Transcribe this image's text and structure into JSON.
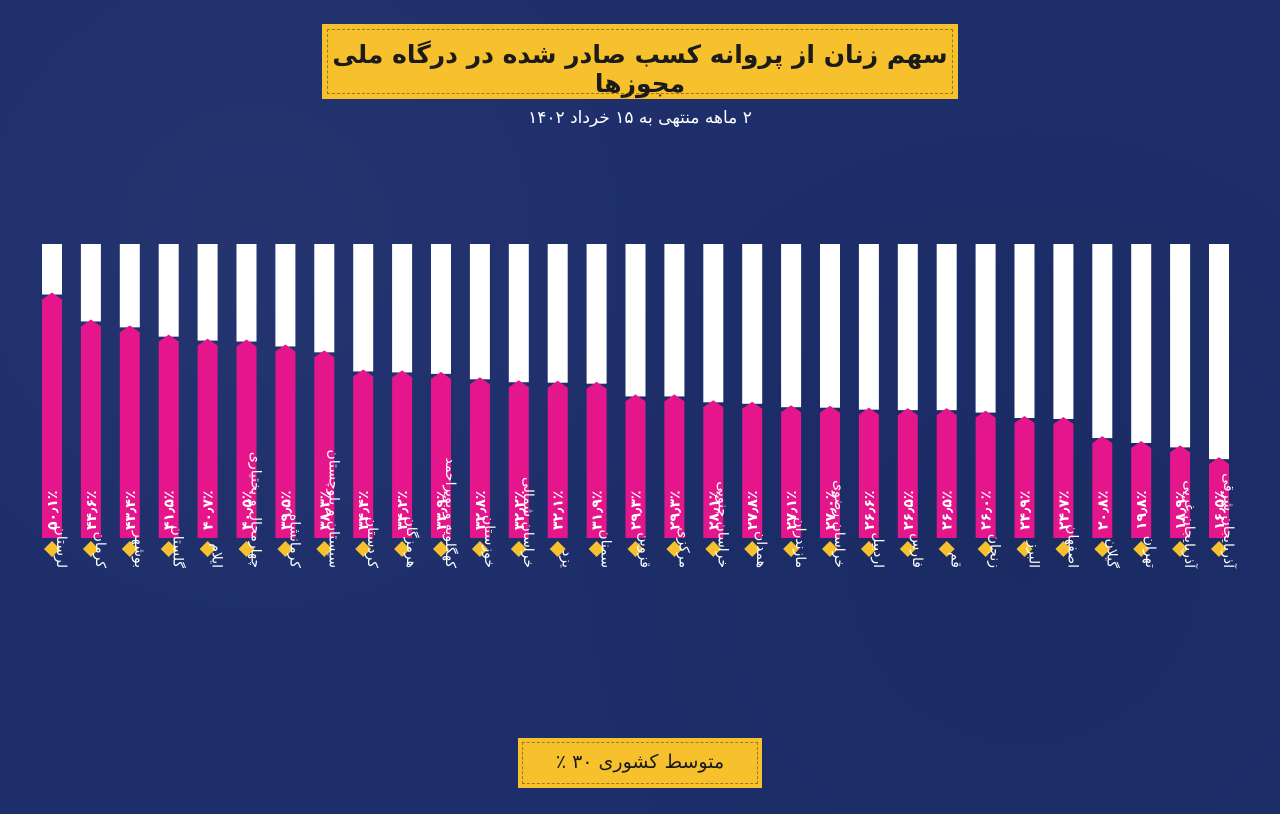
{
  "header": {
    "title": "سهم زنان از پروانه کسب صادر شده در درگاه ملی مجوزها",
    "subtitle": "۲ ماهه منتهی به ۱۵ خرداد ۱۴۰۲"
  },
  "footer": {
    "average_label": "متوسط کشوری ۳۰ ٪"
  },
  "colors": {
    "background": "#1d2e6b",
    "accent": "#f7c02d",
    "bar": "#e5158c",
    "track": "#ffffff"
  },
  "chart_data": {
    "type": "bar",
    "unit": "percent",
    "ylim": [
      0,
      60
    ],
    "average": 30,
    "categories": [
      "لرستان",
      "کرمان",
      "بوشهر",
      "گلستان",
      "ایلام",
      "چهارمحال و بختیاری",
      "کرمانشاه",
      "سیستان و بلوچستان",
      "کردستان",
      "هرمزگان",
      "کهگلویه و بویراحمد",
      "خوزستان",
      "خراسان شمالی",
      "یزد",
      "سمنان",
      "قزوین",
      "مرکزی",
      "خراسان جنوبی",
      "همدان",
      "مازندران",
      "خراسان رضوی",
      "اردبیل",
      "فارس",
      "قم",
      "زنجان",
      "البرز",
      "اصفهان",
      "گیلان",
      "تهران",
      "آذربایجان غربی",
      "آذربایجان شرقی"
    ],
    "values": [
      50.1,
      44.6,
      43.4,
      41.5,
      40.7,
      40.5,
      39.5,
      38.3,
      34.4,
      34.2,
      33.9,
      32.8,
      32.2,
      32.1,
      31.9,
      29.3,
      29.3,
      28.1,
      27.8,
      27.1,
      27.0,
      26.6,
      26.5,
      26.5,
      26.0,
      24.9,
      24.7,
      20.8,
      19.8,
      18.9,
      16.5
    ],
    "labels": [
      "۵۰٫۱٪",
      "۴۴٫۶٪",
      "۴۳٫۴٪",
      "۴۱٫۵٪",
      "۴۰٫۷٪",
      "۴۰٫۵٪",
      "۳۹٫۵٪",
      "۳۸٫۳٪",
      "۳۴٫۴٪",
      "۳۴٫۲٪",
      "۳۳٫۹٪",
      "۳۲٫۸٪",
      "۳۲٫۲٪",
      "۳۲٫۱٪",
      "۳۱٫۹٪",
      "۲۹٫۳٪",
      "۲۹٫۳٪",
      "۲۸٫۱٪",
      "۲۷٫۸٪",
      "۲۷٫۱٪",
      "۲۷٫۰٪",
      "۲۶٫۶٪",
      "۲۶٫۵٪",
      "۲۶٫۵٪",
      "۲۶٫۰٪",
      "۲۴٫۹٪",
      "۲۴٫۷٪",
      "۲۰٫۸٪",
      "۱۹٫۸٪",
      "۱۸٫۹٪",
      "۱۶٫۵٪"
    ],
    "title": "سهم زنان از پروانه کسب صادر شده در درگاه ملی مجوزها",
    "subtitle": "۲ ماهه منتهی به ۱۵ خرداد ۱۴۰۲",
    "grid": false,
    "legend": "none"
  }
}
